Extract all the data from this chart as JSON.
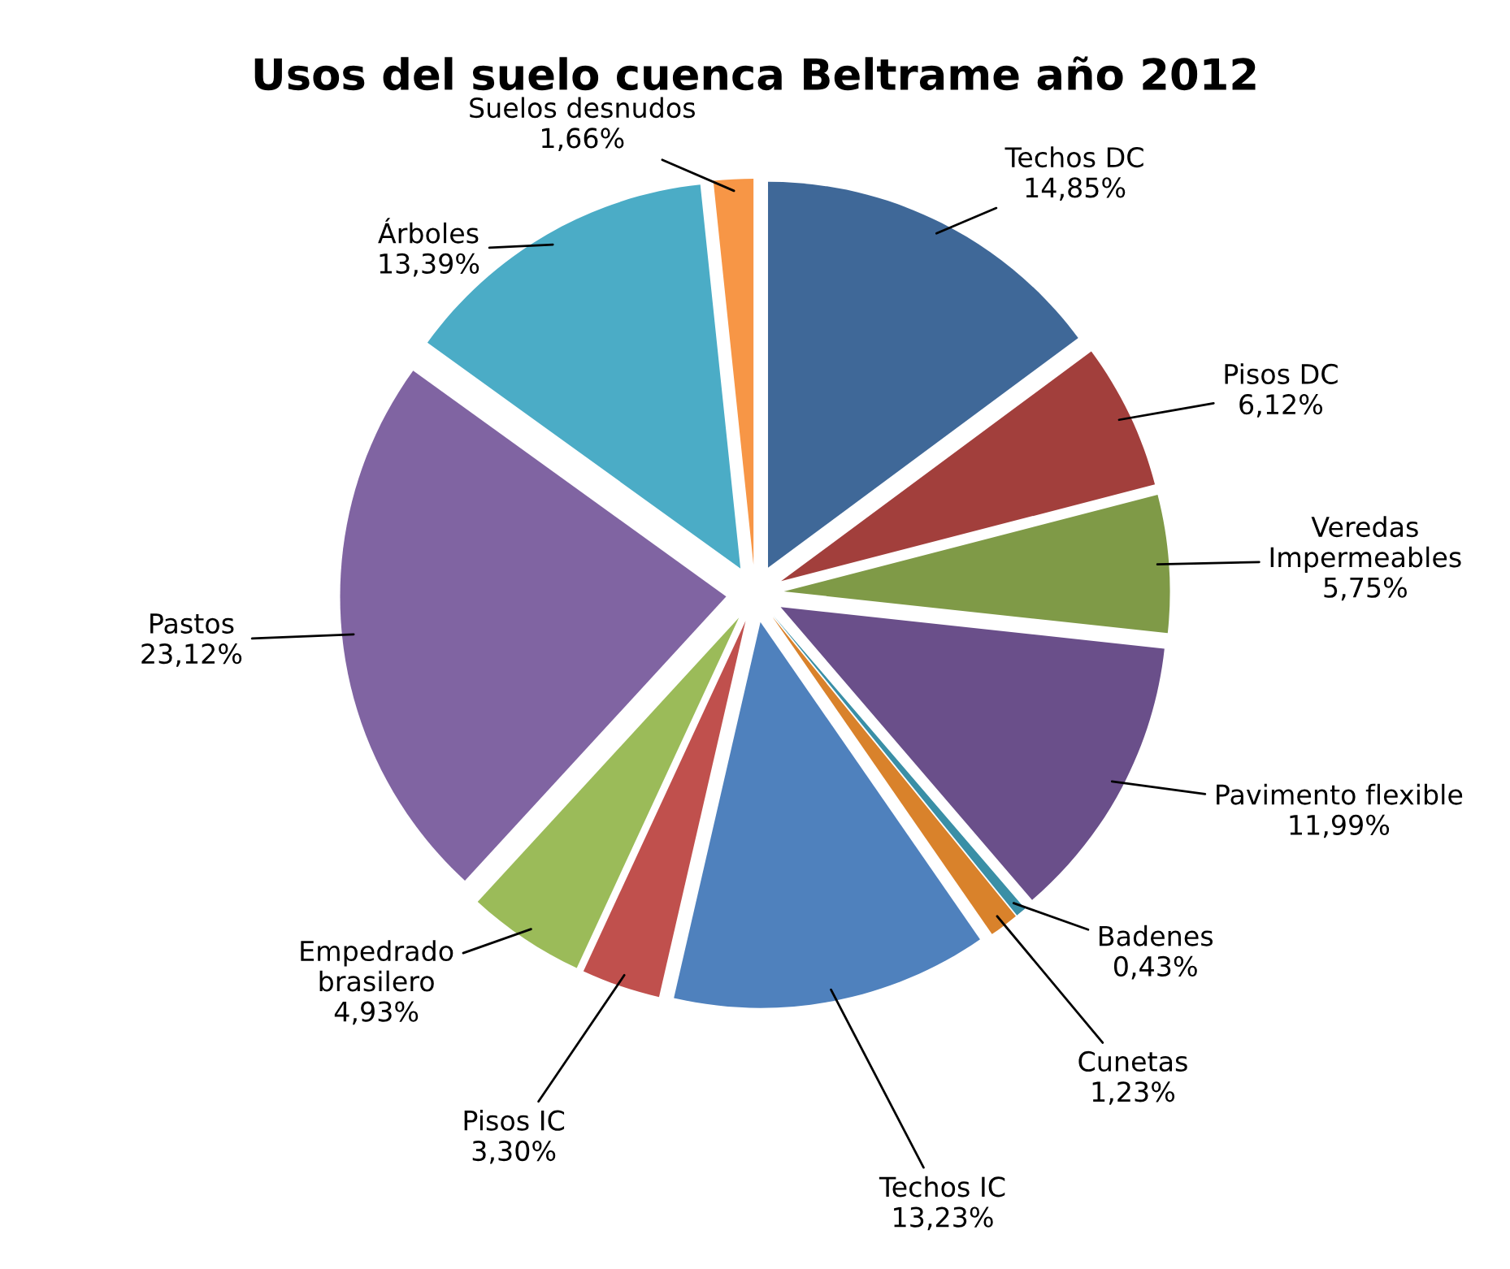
{
  "chart_data": {
    "type": "pie",
    "title": "Usos del suelo cuenca Beltrame año 2012",
    "categories": [
      "Techos DC",
      "Pisos DC",
      "Veredas\nImpermeables",
      "Pavimento flexible",
      "Badenes",
      "Cunetas",
      "Techos IC",
      "Pisos IC",
      "Empedrado\nbrasilero",
      "Pastos",
      "Árboles",
      "Suelos desnudos"
    ],
    "values": [
      14.85,
      6.12,
      5.75,
      11.99,
      0.43,
      1.23,
      13.23,
      3.3,
      4.93,
      23.12,
      13.39,
      1.66
    ],
    "value_labels": [
      "14,85%",
      "6,12%",
      "5,75%",
      "11,99%",
      "0,43%",
      "1,23%",
      "13,23%",
      "3,30%",
      "4,93%",
      "23,12%",
      "13,39%",
      "1,66%"
    ],
    "colors": [
      "#3f6898",
      "#a23f3c",
      "#7f9a47",
      "#6a4f8a",
      "#3a8fa6",
      "#d9822b",
      "#4f81bd",
      "#c0504d",
      "#9bbb59",
      "#8064a2",
      "#4bacc6",
      "#f79646"
    ],
    "legend": false
  }
}
